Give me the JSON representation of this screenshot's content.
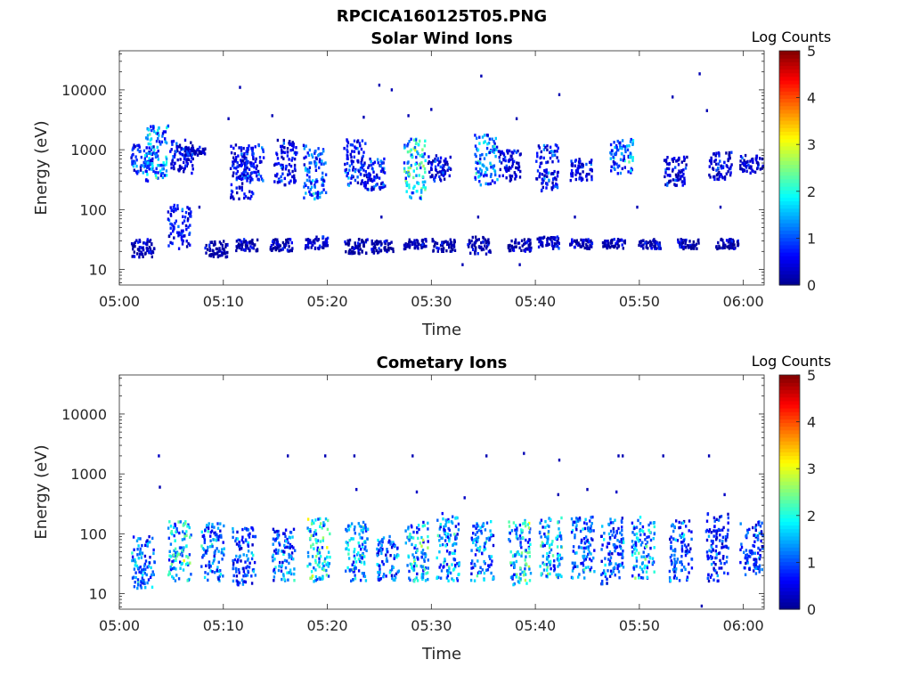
{
  "figure_title": "RPCICA160125T05.PNG",
  "colormap": [
    "#00008f",
    "#0000ff",
    "#0080ff",
    "#00ffff",
    "#80ff80",
    "#ffff00",
    "#ff8000",
    "#ff0000",
    "#800000"
  ],
  "chart_data": [
    {
      "type": "heatmap",
      "title": "Solar Wind Ions",
      "xlabel": "Time",
      "ylabel": "Energy (eV)",
      "x_ticks": [
        "05:00",
        "05:10",
        "05:20",
        "05:30",
        "05:40",
        "05:50",
        "06:00"
      ],
      "xlim": [
        "05:00",
        "06:02"
      ],
      "y_ticks": [
        "10",
        "100",
        "1000",
        "10000"
      ],
      "ylim": [
        5.5,
        45000
      ],
      "y_scale": "log",
      "colorbar": {
        "label": "Log Counts",
        "ticks": [
          "0",
          "1",
          "2",
          "3",
          "4",
          "5"
        ],
        "range": [
          0,
          5
        ]
      },
      "grid": false,
      "clusters": [
        {
          "t": 2.2,
          "e_lo": 400,
          "e_hi": 1200,
          "v": 1.0
        },
        {
          "t": 3.6,
          "e_lo": 300,
          "e_hi": 2500,
          "v": 1.8
        },
        {
          "t": 6.0,
          "e_lo": 400,
          "e_hi": 1500,
          "v": 0.6
        },
        {
          "t": 7.2,
          "e_lo": 800,
          "e_hi": 1100,
          "v": 0.5
        },
        {
          "t": 11.8,
          "e_lo": 150,
          "e_hi": 1200,
          "v": 0.7
        },
        {
          "t": 12.8,
          "e_lo": 300,
          "e_hi": 1200,
          "v": 0.9
        },
        {
          "t": 16.0,
          "e_lo": 250,
          "e_hi": 1500,
          "v": 0.8
        },
        {
          "t": 18.8,
          "e_lo": 150,
          "e_hi": 1200,
          "v": 1.4
        },
        {
          "t": 22.6,
          "e_lo": 250,
          "e_hi": 1500,
          "v": 0.9
        },
        {
          "t": 24.5,
          "e_lo": 200,
          "e_hi": 700,
          "v": 0.8
        },
        {
          "t": 28.5,
          "e_lo": 150,
          "e_hi": 1500,
          "v": 2.2
        },
        {
          "t": 30.8,
          "e_lo": 300,
          "e_hi": 800,
          "v": 0.6
        },
        {
          "t": 35.3,
          "e_lo": 250,
          "e_hi": 1800,
          "v": 1.6
        },
        {
          "t": 37.5,
          "e_lo": 300,
          "e_hi": 1000,
          "v": 0.6
        },
        {
          "t": 41.2,
          "e_lo": 200,
          "e_hi": 1200,
          "v": 0.8
        },
        {
          "t": 44.5,
          "e_lo": 300,
          "e_hi": 700,
          "v": 0.7
        },
        {
          "t": 48.3,
          "e_lo": 400,
          "e_hi": 1500,
          "v": 1.6
        },
        {
          "t": 53.5,
          "e_lo": 250,
          "e_hi": 800,
          "v": 0.6
        },
        {
          "t": 57.8,
          "e_lo": 300,
          "e_hi": 900,
          "v": 0.6
        },
        {
          "t": 60.8,
          "e_lo": 400,
          "e_hi": 800,
          "v": 0.6
        },
        {
          "t": 2.3,
          "e_lo": 16,
          "e_hi": 32,
          "v": 0.4
        },
        {
          "t": 5.8,
          "e_lo": 22,
          "e_hi": 120,
          "v": 0.8
        },
        {
          "t": 9.3,
          "e_lo": 16,
          "e_hi": 30,
          "v": 0.3
        },
        {
          "t": 12.3,
          "e_lo": 20,
          "e_hi": 32,
          "v": 0.3
        },
        {
          "t": 15.6,
          "e_lo": 20,
          "e_hi": 32,
          "v": 0.3
        },
        {
          "t": 19.0,
          "e_lo": 22,
          "e_hi": 35,
          "v": 0.5
        },
        {
          "t": 22.8,
          "e_lo": 18,
          "e_hi": 32,
          "v": 0.3
        },
        {
          "t": 25.3,
          "e_lo": 18,
          "e_hi": 30,
          "v": 0.3
        },
        {
          "t": 28.5,
          "e_lo": 22,
          "e_hi": 32,
          "v": 0.4
        },
        {
          "t": 31.2,
          "e_lo": 20,
          "e_hi": 32,
          "v": 0.3
        },
        {
          "t": 34.6,
          "e_lo": 18,
          "e_hi": 35,
          "v": 0.3
        },
        {
          "t": 38.5,
          "e_lo": 20,
          "e_hi": 32,
          "v": 0.3
        },
        {
          "t": 41.2,
          "e_lo": 22,
          "e_hi": 35,
          "v": 0.5
        },
        {
          "t": 44.4,
          "e_lo": 22,
          "e_hi": 32,
          "v": 0.3
        },
        {
          "t": 47.6,
          "e_lo": 22,
          "e_hi": 32,
          "v": 0.3
        },
        {
          "t": 51.0,
          "e_lo": 22,
          "e_hi": 32,
          "v": 0.3
        },
        {
          "t": 54.8,
          "e_lo": 22,
          "e_hi": 32,
          "v": 0.3
        },
        {
          "t": 58.5,
          "e_lo": 22,
          "e_hi": 32,
          "v": 0.3
        }
      ],
      "scatter": [
        {
          "t": 11.6,
          "e": 11000,
          "v": 0.2
        },
        {
          "t": 25.0,
          "e": 12000,
          "v": 0.2
        },
        {
          "t": 26.2,
          "e": 10000,
          "v": 0.2
        },
        {
          "t": 34.8,
          "e": 17000,
          "v": 0.2
        },
        {
          "t": 42.3,
          "e": 8300,
          "v": 0.2
        },
        {
          "t": 53.2,
          "e": 7600,
          "v": 0.2
        },
        {
          "t": 55.8,
          "e": 18500,
          "v": 0.2
        },
        {
          "t": 10.5,
          "e": 3300,
          "v": 0.2
        },
        {
          "t": 14.7,
          "e": 3700,
          "v": 0.2
        },
        {
          "t": 23.5,
          "e": 3500,
          "v": 0.2
        },
        {
          "t": 30.0,
          "e": 4700,
          "v": 0.2
        },
        {
          "t": 27.8,
          "e": 3700,
          "v": 0.2
        },
        {
          "t": 38.2,
          "e": 3300,
          "v": 0.2
        },
        {
          "t": 56.5,
          "e": 4500,
          "v": 0.2
        },
        {
          "t": 7.7,
          "e": 110,
          "v": 0.2
        },
        {
          "t": 25.2,
          "e": 75,
          "v": 0.2
        },
        {
          "t": 34.5,
          "e": 75,
          "v": 0.2
        },
        {
          "t": 43.8,
          "e": 75,
          "v": 0.2
        },
        {
          "t": 49.8,
          "e": 110,
          "v": 0.2
        },
        {
          "t": 57.8,
          "e": 110,
          "v": 0.2
        },
        {
          "t": 38.5,
          "e": 12,
          "v": 0.2
        },
        {
          "t": 33.0,
          "e": 12,
          "v": 0.2
        }
      ]
    },
    {
      "type": "heatmap",
      "title": "Cometary Ions",
      "xlabel": "Time",
      "ylabel": "Energy (eV)",
      "x_ticks": [
        "05:00",
        "05:10",
        "05:20",
        "05:30",
        "05:40",
        "05:50",
        "06:00"
      ],
      "xlim": [
        "05:00",
        "06:02"
      ],
      "y_ticks": [
        "10",
        "100",
        "1000",
        "10000"
      ],
      "ylim": [
        5.5,
        45000
      ],
      "y_scale": "log",
      "colorbar": {
        "label": "Log Counts",
        "ticks": [
          "0",
          "1",
          "2",
          "3",
          "4",
          "5"
        ],
        "range": [
          0,
          5
        ]
      },
      "grid": false,
      "clusters": [
        {
          "t": 2.3,
          "e_lo": 12,
          "e_hi": 90,
          "v": 1.6
        },
        {
          "t": 5.8,
          "e_lo": 16,
          "e_hi": 160,
          "v": 2.2
        },
        {
          "t": 9.0,
          "e_lo": 16,
          "e_hi": 150,
          "v": 1.5
        },
        {
          "t": 12.0,
          "e_lo": 14,
          "e_hi": 130,
          "v": 1.3
        },
        {
          "t": 15.8,
          "e_lo": 16,
          "e_hi": 120,
          "v": 1.5
        },
        {
          "t": 19.2,
          "e_lo": 16,
          "e_hi": 180,
          "v": 2.3
        },
        {
          "t": 22.8,
          "e_lo": 16,
          "e_hi": 160,
          "v": 1.8
        },
        {
          "t": 25.8,
          "e_lo": 16,
          "e_hi": 90,
          "v": 1.4
        },
        {
          "t": 28.6,
          "e_lo": 16,
          "e_hi": 160,
          "v": 2.0
        },
        {
          "t": 31.6,
          "e_lo": 16,
          "e_hi": 220,
          "v": 1.7
        },
        {
          "t": 34.9,
          "e_lo": 16,
          "e_hi": 160,
          "v": 1.6
        },
        {
          "t": 38.5,
          "e_lo": 14,
          "e_hi": 180,
          "v": 2.2
        },
        {
          "t": 41.5,
          "e_lo": 18,
          "e_hi": 190,
          "v": 1.9
        },
        {
          "t": 44.6,
          "e_lo": 18,
          "e_hi": 190,
          "v": 1.5
        },
        {
          "t": 47.4,
          "e_lo": 14,
          "e_hi": 190,
          "v": 1.3
        },
        {
          "t": 50.4,
          "e_lo": 18,
          "e_hi": 190,
          "v": 1.8
        },
        {
          "t": 54.0,
          "e_lo": 16,
          "e_hi": 180,
          "v": 1.2
        },
        {
          "t": 57.5,
          "e_lo": 16,
          "e_hi": 220,
          "v": 1.0
        },
        {
          "t": 60.8,
          "e_lo": 20,
          "e_hi": 160,
          "v": 1.2
        }
      ],
      "scatter": [
        {
          "t": 3.8,
          "e": 2000,
          "v": 0.3
        },
        {
          "t": 16.2,
          "e": 2000,
          "v": 0.2
        },
        {
          "t": 19.8,
          "e": 2000,
          "v": 0.2
        },
        {
          "t": 22.6,
          "e": 2000,
          "v": 0.2
        },
        {
          "t": 28.2,
          "e": 2000,
          "v": 0.2
        },
        {
          "t": 35.3,
          "e": 2000,
          "v": 0.2
        },
        {
          "t": 38.9,
          "e": 2200,
          "v": 0.2
        },
        {
          "t": 42.3,
          "e": 1700,
          "v": 0.2
        },
        {
          "t": 48.0,
          "e": 2000,
          "v": 0.2
        },
        {
          "t": 48.4,
          "e": 2000,
          "v": 0.2
        },
        {
          "t": 52.3,
          "e": 2000,
          "v": 0.2
        },
        {
          "t": 56.7,
          "e": 2000,
          "v": 0.2
        },
        {
          "t": 3.9,
          "e": 600,
          "v": 0.2
        },
        {
          "t": 22.8,
          "e": 550,
          "v": 0.3
        },
        {
          "t": 28.6,
          "e": 500,
          "v": 0.3
        },
        {
          "t": 33.2,
          "e": 400,
          "v": 0.3
        },
        {
          "t": 42.2,
          "e": 450,
          "v": 0.2
        },
        {
          "t": 45.0,
          "e": 550,
          "v": 0.2
        },
        {
          "t": 47.8,
          "e": 500,
          "v": 0.3
        },
        {
          "t": 58.2,
          "e": 450,
          "v": 0.3
        },
        {
          "t": 56.0,
          "e": 6.2,
          "v": 0.2
        }
      ]
    }
  ]
}
